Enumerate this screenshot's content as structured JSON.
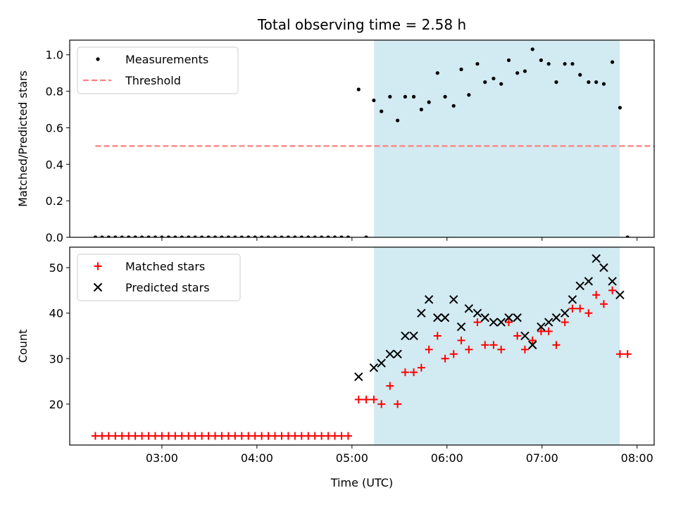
{
  "chart_data": {
    "title": "Total observing time = 2.58 h",
    "xlabel": "Time (UTC)",
    "x_unit": "hours UTC",
    "xlim": [
      2.03,
      8.18
    ],
    "xticks": [
      {
        "value": 3,
        "label": "03:00"
      },
      {
        "value": 4,
        "label": "04:00"
      },
      {
        "value": 5,
        "label": "05:00"
      },
      {
        "value": 6,
        "label": "06:00"
      },
      {
        "value": 7,
        "label": "07:00"
      },
      {
        "value": 8,
        "label": "08:00"
      }
    ],
    "observing_window": {
      "start": 5.233,
      "end": 7.817,
      "color": "#add8e6"
    },
    "panels": [
      {
        "type": "scatter",
        "ylabel": "Matched/Predicted stars",
        "ylim": [
          0.0,
          1.08
        ],
        "yticks": [
          "0.0",
          "0.2",
          "0.4",
          "0.6",
          "0.8",
          "1.0"
        ],
        "ytick_values": [
          0.0,
          0.2,
          0.4,
          0.6,
          0.8,
          1.0
        ],
        "legend_position": "upper-left",
        "series": [
          {
            "name": "Measurements",
            "kind": "dot",
            "color": "#000000",
            "x": [
              2.3,
              2.37,
              2.44,
              2.51,
              2.58,
              2.65,
              2.72,
              2.79,
              2.86,
              2.93,
              3.0,
              3.07,
              3.14,
              3.21,
              3.28,
              3.35,
              3.42,
              3.49,
              3.56,
              3.63,
              3.7,
              3.77,
              3.84,
              3.91,
              3.98,
              4.05,
              4.12,
              4.19,
              4.26,
              4.33,
              4.4,
              4.47,
              4.54,
              4.61,
              4.68,
              4.75,
              4.82,
              4.89,
              4.96,
              5.07,
              5.15,
              5.23,
              5.31,
              5.4,
              5.48,
              5.56,
              5.65,
              5.73,
              5.81,
              5.9,
              5.98,
              6.07,
              6.15,
              6.23,
              6.32,
              6.4,
              6.49,
              6.57,
              6.65,
              6.74,
              6.82,
              6.9,
              6.99,
              7.07,
              7.15,
              7.24,
              7.32,
              7.4,
              7.49,
              7.57,
              7.65,
              7.74,
              7.82,
              7.9
            ],
            "y": [
              0,
              0,
              0,
              0,
              0,
              0,
              0,
              0,
              0,
              0,
              0,
              0,
              0,
              0,
              0,
              0,
              0,
              0,
              0,
              0,
              0,
              0,
              0,
              0,
              0,
              0,
              0,
              0,
              0,
              0,
              0,
              0,
              0,
              0,
              0,
              0,
              0,
              0,
              0,
              0.81,
              0,
              0.75,
              0.69,
              0.77,
              0.64,
              0.77,
              0.77,
              0.7,
              0.74,
              0.9,
              0.77,
              0.72,
              0.92,
              0.78,
              0.95,
              0.85,
              0.87,
              0.84,
              0.97,
              0.9,
              0.91,
              1.03,
              0.97,
              0.95,
              0.85,
              0.95,
              0.95,
              0.89,
              0.85,
              0.85,
              0.84,
              0.96,
              0.71,
              0
            ]
          },
          {
            "name": "Threshold",
            "kind": "dashed-line",
            "color": "#ff7f7f",
            "x": [
              2.3,
              8.2
            ],
            "y": [
              0.5,
              0.5
            ]
          }
        ]
      },
      {
        "type": "scatter",
        "ylabel": "Count",
        "ylim": [
          11.0,
          54.5
        ],
        "yticks": [
          "20",
          "30",
          "40",
          "50"
        ],
        "ytick_values": [
          20,
          30,
          40,
          50
        ],
        "legend_position": "upper-left",
        "series": [
          {
            "name": "Matched stars",
            "kind": "plus",
            "color": "#ff0000",
            "x": [
              2.3,
              2.37,
              2.44,
              2.51,
              2.58,
              2.65,
              2.72,
              2.79,
              2.86,
              2.93,
              3.0,
              3.07,
              3.14,
              3.21,
              3.28,
              3.35,
              3.42,
              3.49,
              3.56,
              3.63,
              3.7,
              3.77,
              3.84,
              3.91,
              3.98,
              4.05,
              4.12,
              4.19,
              4.26,
              4.33,
              4.4,
              4.47,
              4.54,
              4.61,
              4.68,
              4.75,
              4.82,
              4.89,
              4.96,
              5.07,
              5.15,
              5.23,
              5.31,
              5.4,
              5.48,
              5.56,
              5.65,
              5.73,
              5.81,
              5.9,
              5.98,
              6.07,
              6.15,
              6.23,
              6.32,
              6.4,
              6.49,
              6.57,
              6.65,
              6.74,
              6.82,
              6.9,
              6.99,
              7.07,
              7.15,
              7.24,
              7.32,
              7.4,
              7.49,
              7.57,
              7.65,
              7.74,
              7.82,
              7.9
            ],
            "y": [
              13,
              13,
              13,
              13,
              13,
              13,
              13,
              13,
              13,
              13,
              13,
              13,
              13,
              13,
              13,
              13,
              13,
              13,
              13,
              13,
              13,
              13,
              13,
              13,
              13,
              13,
              13,
              13,
              13,
              13,
              13,
              13,
              13,
              13,
              13,
              13,
              13,
              13,
              13,
              21,
              21,
              21,
              20,
              24,
              20,
              27,
              27,
              28,
              32,
              35,
              30,
              31,
              34,
              32,
              38,
              33,
              33,
              32,
              38,
              35,
              32,
              34,
              36,
              36,
              33,
              38,
              41,
              41,
              40,
              44,
              42,
              45,
              31,
              31
            ]
          },
          {
            "name": "Predicted stars",
            "kind": "cross",
            "color": "#000000",
            "x": [
              5.07,
              5.23,
              5.31,
              5.4,
              5.48,
              5.56,
              5.65,
              5.73,
              5.81,
              5.9,
              5.98,
              6.07,
              6.15,
              6.23,
              6.32,
              6.4,
              6.49,
              6.57,
              6.65,
              6.74,
              6.82,
              6.9,
              6.99,
              7.07,
              7.15,
              7.24,
              7.32,
              7.4,
              7.49,
              7.57,
              7.65,
              7.74,
              7.82
            ],
            "y": [
              26,
              28,
              29,
              31,
              31,
              35,
              35,
              40,
              43,
              39,
              39,
              43,
              37,
              41,
              40,
              39,
              38,
              38,
              39,
              39,
              35,
              33,
              37,
              38,
              39,
              40,
              43,
              46,
              47,
              52,
              50,
              47,
              44
            ]
          }
        ]
      }
    ]
  }
}
